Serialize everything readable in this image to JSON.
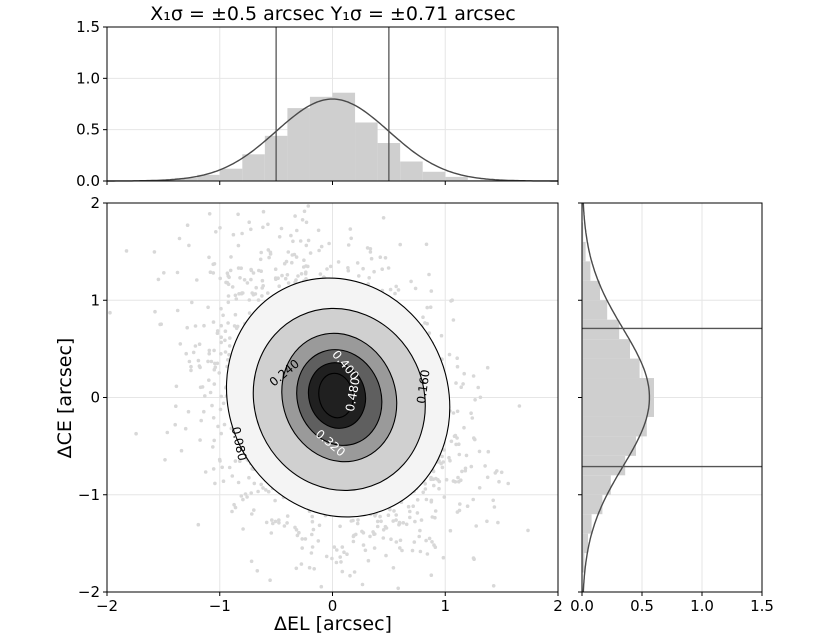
{
  "chart_data": {
    "type": "scatter",
    "title": "X₁σ = ±0.5 arcsec   Y₁σ = ±0.71 arcsec",
    "sigma_x": 0.5,
    "sigma_y": 0.71,
    "xlabel": "ΔEL [arcsec]",
    "ylabel": "ΔCE [arcsec]",
    "xlim": [
      -2,
      2
    ],
    "ylim": [
      -2,
      2
    ],
    "grid": true,
    "xticks": [
      "−2",
      "−1",
      "0",
      "1",
      "2"
    ],
    "yticks": [
      "−2",
      "−1",
      "0",
      "1",
      "2"
    ],
    "colors": {
      "scatter": "#d8d8d8",
      "hist_fill": "#cfcfcf",
      "curve": "#4a4a4a",
      "sigma_line": "#555555",
      "grid": "#e6e6e6"
    },
    "contour_fills": [
      "#f4f4f4",
      "#d0d0d0",
      "#9a9a9a",
      "#5f5f5f",
      "#202020"
    ],
    "contours": [
      {
        "level": 0.08,
        "label": "0.080",
        "rx": 0.97,
        "ry": 1.25,
        "cx": 0.05,
        "cy": 0.0,
        "angle": -25
      },
      {
        "level": 0.16,
        "label": "0.160",
        "rx": 0.75,
        "ry": 0.95,
        "cx": 0.06,
        "cy": -0.02,
        "angle": -25
      },
      {
        "level": 0.24,
        "label": "0.240",
        "rx": 0.5,
        "ry": 0.67,
        "cx": 0.06,
        "cy": 0.0,
        "angle": -20
      },
      {
        "level": 0.32,
        "label": "0.320",
        "rx": 0.37,
        "ry": 0.5,
        "cx": 0.06,
        "cy": 0.0,
        "angle": -20
      },
      {
        "level": 0.4,
        "label": "0.400",
        "rx": 0.25,
        "ry": 0.34,
        "cx": 0.04,
        "cy": 0.02,
        "angle": -15
      },
      {
        "level": 0.48,
        "label": "0.480",
        "rx": 0.15,
        "ry": 0.23,
        "cx": 0.03,
        "cy": 0.02,
        "angle": -10
      }
    ],
    "top_hist": {
      "ylim": [
        0,
        1.5
      ],
      "xlim": [
        -2,
        2
      ],
      "yticks": [
        "0.0",
        "0.5",
        "1.0",
        "1.5"
      ],
      "bin_edges": [
        -2,
        -1.8,
        -1.6,
        -1.4,
        -1.2,
        -1.0,
        -0.8,
        -0.6,
        -0.4,
        -0.2,
        0.0,
        0.2,
        0.4,
        0.6,
        0.8,
        1.0,
        1.2,
        1.4,
        1.6,
        1.8,
        2.0
      ],
      "values": [
        0.0,
        0.0,
        0.01,
        0.03,
        0.06,
        0.12,
        0.26,
        0.44,
        0.71,
        0.82,
        0.86,
        0.57,
        0.37,
        0.19,
        0.09,
        0.04,
        0.01,
        0.0,
        0.0,
        0.0
      ],
      "curve_mean": 0.0,
      "curve_sigma": 0.5,
      "sigma_lines": [
        -0.5,
        0.5
      ]
    },
    "right_hist": {
      "xlim": [
        0,
        1.5
      ],
      "ylim": [
        -2,
        2
      ],
      "xticks": [
        "0.0",
        "0.5",
        "1.0",
        "1.5"
      ],
      "bin_edges": [
        -2.0,
        -1.8,
        -1.6,
        -1.4,
        -1.2,
        -1.0,
        -0.8,
        -0.6,
        -0.4,
        -0.2,
        0.0,
        0.2,
        0.4,
        0.6,
        0.8,
        1.0,
        1.2,
        1.4,
        1.6,
        1.8,
        2.0
      ],
      "values": [
        0.0,
        0.02,
        0.05,
        0.08,
        0.17,
        0.24,
        0.36,
        0.45,
        0.54,
        0.6,
        0.6,
        0.48,
        0.4,
        0.31,
        0.21,
        0.15,
        0.07,
        0.03,
        0.01,
        0.0
      ],
      "curve_mean": 0.0,
      "curve_sigma": 0.71,
      "sigma_lines": [
        -0.71,
        0.71
      ]
    }
  }
}
